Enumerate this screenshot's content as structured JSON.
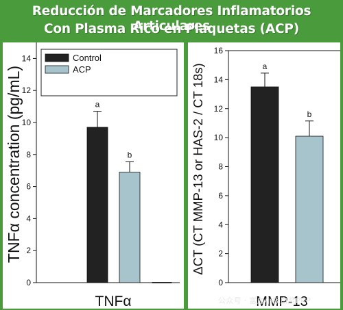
{
  "header": {
    "title_line1": "Reducción de Marcadores Inflamatorios Articulares",
    "title_line2": "Con Plasma Rico en Plaquetas (ACP)"
  },
  "colors": {
    "background": "#4a9b3c",
    "panel": "#ffffff",
    "control_bar": "#222222",
    "acp_bar": "#a7c4cc"
  },
  "watermark": "公众号 · 富血小板血浆PRP",
  "chart_data": [
    {
      "type": "bar",
      "ylabel": "TNFα concentration (pg/mL)",
      "xlabel": "TNFα",
      "ylim": [
        0,
        15
      ],
      "yticks": [
        0,
        2,
        4,
        6,
        8,
        10,
        12,
        14
      ],
      "legend": {
        "placement": "top-left",
        "entries": [
          "Control",
          "ACP"
        ]
      },
      "series": [
        {
          "name": "Control",
          "values": [
            9.7
          ],
          "error": [
            1.0
          ],
          "letters": [
            "a"
          ]
        },
        {
          "name": "ACP",
          "values": [
            6.9
          ],
          "error": [
            0.65
          ],
          "letters": [
            "b"
          ]
        }
      ],
      "trailing_value": 0.02
    },
    {
      "type": "bar",
      "ylabel": "ΔCT (CT MMP-13 or HAS-2 / CT 18s)",
      "xlabel": "MMP-13",
      "ylim": [
        0,
        16
      ],
      "yticks": [
        0,
        2,
        4,
        6,
        8,
        10,
        12,
        14,
        16
      ],
      "series": [
        {
          "name": "Control",
          "values": [
            13.5
          ],
          "error": [
            0.95
          ],
          "letters": [
            "a"
          ]
        },
        {
          "name": "ACP",
          "values": [
            10.1
          ],
          "error": [
            1.05
          ],
          "letters": [
            "b"
          ]
        }
      ]
    }
  ]
}
